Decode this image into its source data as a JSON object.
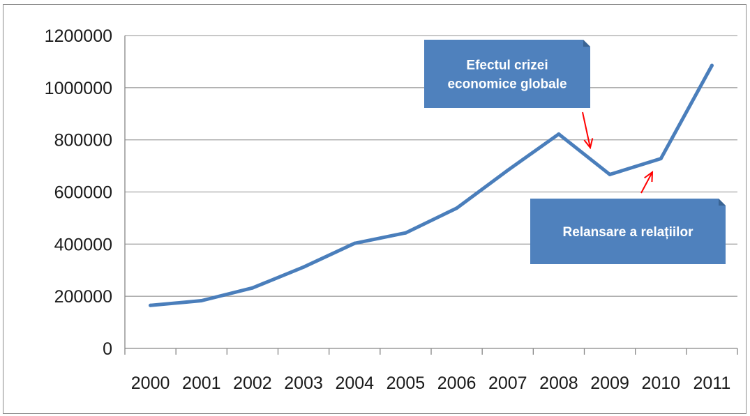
{
  "chart_data": {
    "type": "line",
    "title": "",
    "xlabel": "",
    "ylabel": "",
    "categories": [
      "2000",
      "2001",
      "2002",
      "2003",
      "2004",
      "2005",
      "2006",
      "2007",
      "2008",
      "2009",
      "2010",
      "2011"
    ],
    "series": [
      {
        "values": [
          165000,
          183000,
          232000,
          312000,
          403000,
          443000,
          538000,
          683000,
          822000,
          667000,
          728000,
          1085000
        ]
      }
    ],
    "ylim": [
      0,
      1200000
    ],
    "yticks": [
      "0",
      "200000",
      "400000",
      "600000",
      "800000",
      "1000000",
      "1200000"
    ],
    "grid": true,
    "colors": {
      "line": "#4a7ebb",
      "grid": "#a6a6a6",
      "callout": "#4f81bd",
      "arrow": "#ff0000"
    },
    "annotations": [
      {
        "lines": [
          "Efectul crizei",
          "economice globale"
        ],
        "target_index": 9
      },
      {
        "lines": [
          "Relansare a relațiilor"
        ],
        "target_index": 10
      }
    ]
  }
}
